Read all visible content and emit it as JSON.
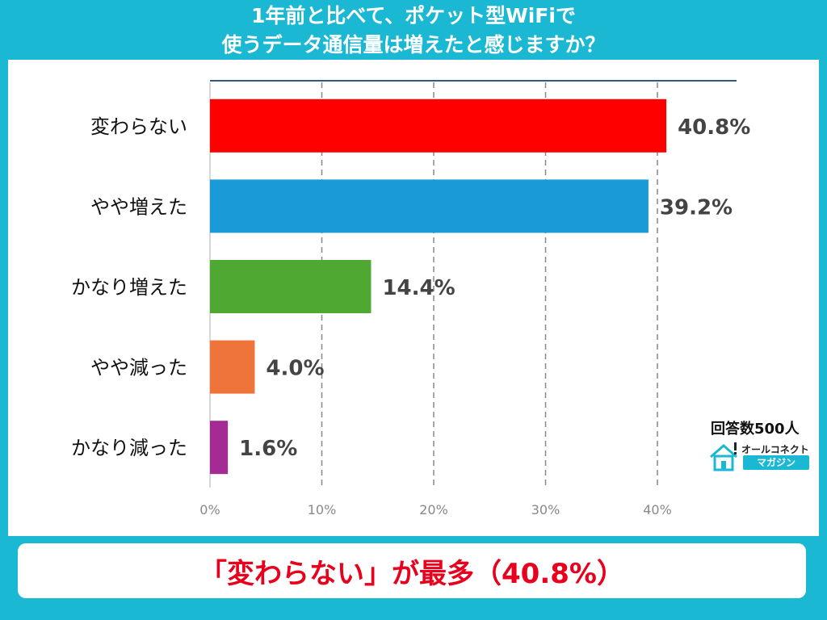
{
  "title": {
    "line1": "1年前と比べて、ポケット型WiFiで",
    "line2": "使うデータ通信量は増えたと感じますか？"
  },
  "chart_data": {
    "type": "bar",
    "orientation": "horizontal",
    "categories": [
      "変わらない",
      "やや増えた",
      "かなり増えた",
      "やや減った",
      "かなり減った"
    ],
    "values": [
      40.8,
      39.2,
      14.4,
      4.0,
      1.6
    ],
    "value_labels": [
      "40.8%",
      "39.2%",
      "14.4%",
      "4.0%",
      "1.6%"
    ],
    "colors": [
      "#ff0000",
      "#1a9ad6",
      "#4ea832",
      "#ee7439",
      "#a32b93"
    ],
    "xlim": [
      0,
      40
    ],
    "x_ticks": [
      "0%",
      "10%",
      "20%",
      "30%",
      "40%"
    ],
    "grid": "vertical-dashed"
  },
  "respondents": "回答数500人",
  "logo": {
    "top_text": "オールコネクト",
    "bottom_text": "マガジン"
  },
  "footer": {
    "text": "「変わらない」が最多（40.8%）"
  }
}
